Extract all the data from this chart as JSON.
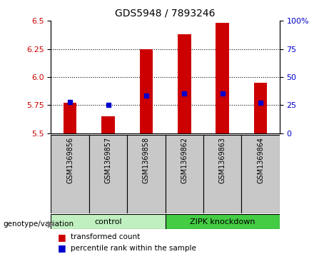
{
  "title": "GDS5948 / 7893246",
  "samples": [
    "GSM1369856",
    "GSM1369857",
    "GSM1369858",
    "GSM1369862",
    "GSM1369863",
    "GSM1369864"
  ],
  "bar_values": [
    5.77,
    5.65,
    6.25,
    6.38,
    6.48,
    5.95
  ],
  "percentile_values": [
    5.78,
    5.755,
    5.835,
    5.855,
    5.855,
    5.775
  ],
  "y_min": 5.5,
  "y_max": 6.5,
  "y_ticks_left": [
    5.5,
    5.75,
    6.0,
    6.25,
    6.5
  ],
  "y_ticks_right": [
    0,
    25,
    50,
    75,
    100
  ],
  "groups": [
    {
      "label": "control",
      "indices": [
        0,
        1,
        2
      ],
      "color": "#c0f0c0"
    },
    {
      "label": "ZIPK knockdown",
      "indices": [
        3,
        4,
        5
      ],
      "color": "#44cc44"
    }
  ],
  "bar_color": "#cc0000",
  "percentile_color": "#0000cc",
  "plot_bg": "#ffffff",
  "label_bg": "#c8c8c8",
  "genotype_label": "genotype/variation",
  "legend_bar": "transformed count",
  "legend_percentile": "percentile rank within the sample",
  "bar_width": 0.35
}
